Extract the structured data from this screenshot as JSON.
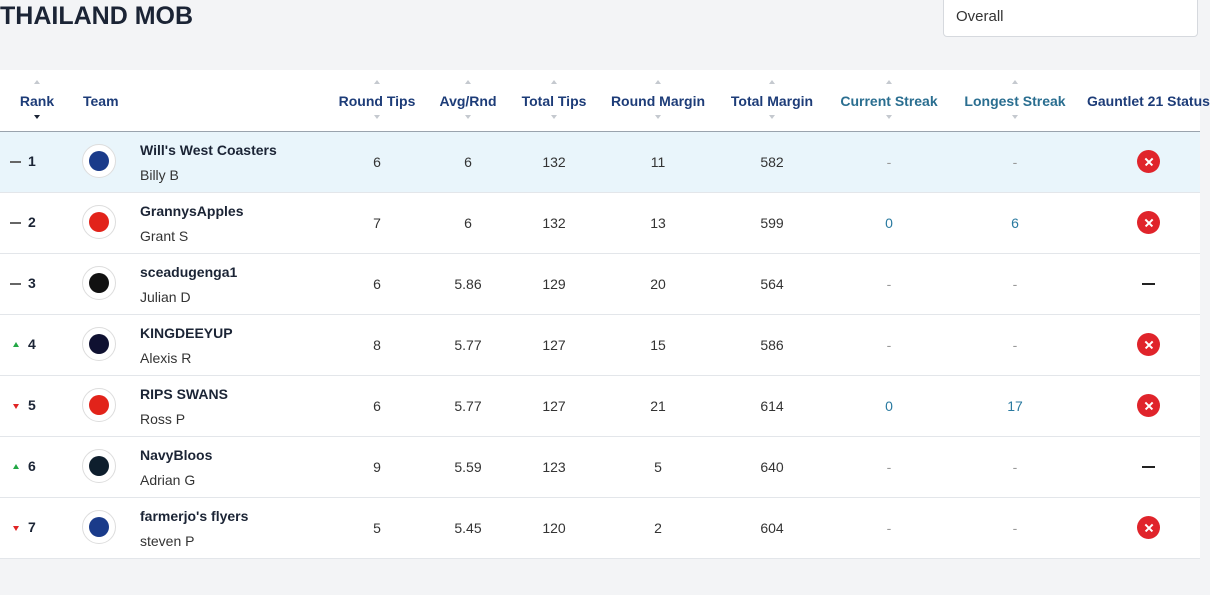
{
  "header": {
    "title": "THAILAND MOB",
    "filter": "Overall"
  },
  "table": {
    "columns": [
      "Rank",
      "Team",
      "Round Tips",
      "Avg/Rnd",
      "Total Tips",
      "Round Margin",
      "Total Margin",
      "Current Streak",
      "Longest Streak",
      "Gauntlet 21 Status"
    ],
    "rows": [
      {
        "rank": "1",
        "movement": "same",
        "team": "Will's West Coasters",
        "owner": "Billy B",
        "logo_color": "#1a3b8a",
        "cells": [
          "6",
          "6",
          "132",
          "11",
          "582",
          "-",
          "-"
        ],
        "status": "out",
        "highlight": true
      },
      {
        "rank": "2",
        "movement": "same",
        "team": "GrannysApples",
        "owner": "Grant S",
        "logo_color": "#e2231a",
        "cells": [
          "7",
          "6",
          "132",
          "13",
          "599",
          "0",
          "6"
        ],
        "status": "out",
        "highlight": false
      },
      {
        "rank": "3",
        "movement": "same",
        "team": "sceadugenga1",
        "owner": "Julian D",
        "logo_color": "#111111",
        "cells": [
          "6",
          "5.86",
          "129",
          "20",
          "564",
          "-",
          "-"
        ],
        "status": "none",
        "highlight": false
      },
      {
        "rank": "4",
        "movement": "up",
        "team": "KINGDEEYUP",
        "owner": "Alexis R",
        "logo_color": "#0f1131",
        "cells": [
          "8",
          "5.77",
          "127",
          "15",
          "586",
          "-",
          "-"
        ],
        "status": "out",
        "highlight": false
      },
      {
        "rank": "5",
        "movement": "down",
        "team": "RIPS SWANS",
        "owner": "Ross P",
        "logo_color": "#e2231a",
        "cells": [
          "6",
          "5.77",
          "127",
          "21",
          "614",
          "0",
          "17"
        ],
        "status": "out",
        "highlight": false
      },
      {
        "rank": "6",
        "movement": "up",
        "team": "NavyBloos",
        "owner": "Adrian G",
        "logo_color": "#0e1e2d",
        "cells": [
          "9",
          "5.59",
          "123",
          "5",
          "640",
          "-",
          "-"
        ],
        "status": "none",
        "highlight": false
      },
      {
        "rank": "7",
        "movement": "down",
        "team": "farmerjo's flyers",
        "owner": "steven P",
        "logo_color": "#1a3b8a",
        "cells": [
          "5",
          "5.45",
          "120",
          "2",
          "604",
          "-",
          "-"
        ],
        "status": "out",
        "highlight": false
      }
    ]
  }
}
